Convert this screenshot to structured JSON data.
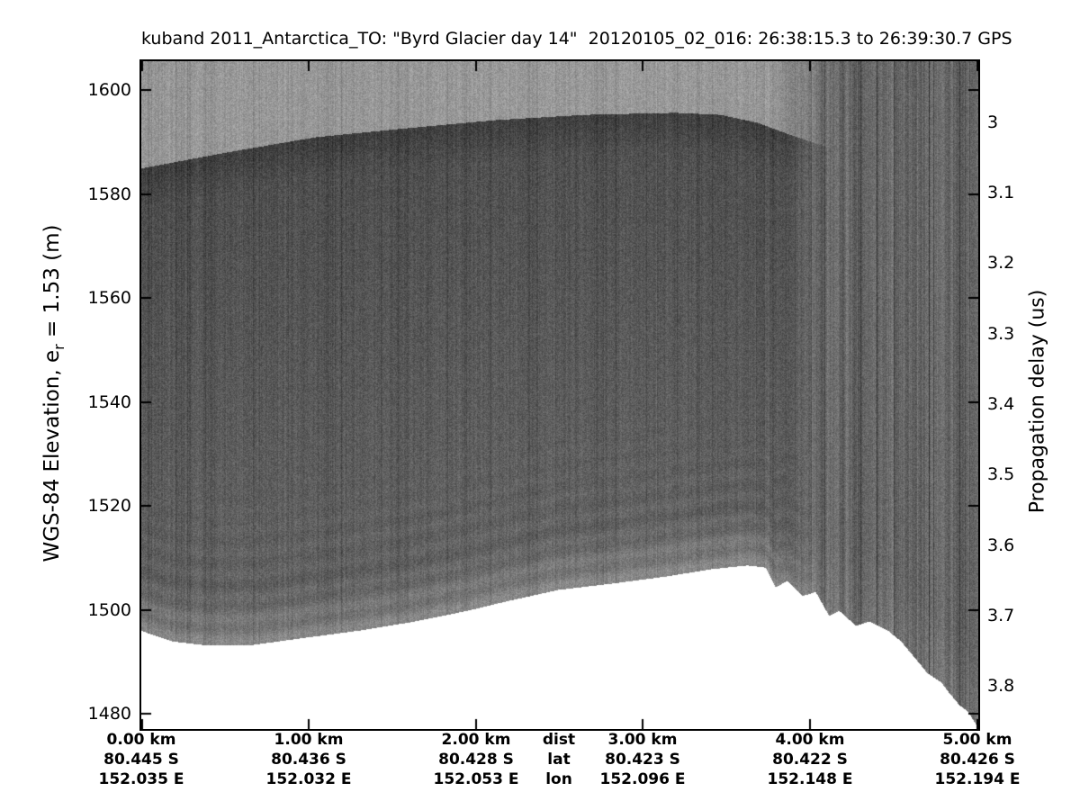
{
  "title": "kuband 2011_Antarctica_TO: \"Byrd Glacier day 14\"  20120105_02_016: 26:38:15.3 to 26:39:30.7 GPS",
  "left_axis": {
    "label_pre": "WGS-84 Elevation, e",
    "label_sub": "r",
    "label_post": " = 1.53 (m)",
    "ticks": [
      "1600",
      "1580",
      "1560",
      "1540",
      "1520",
      "1500",
      "1480"
    ]
  },
  "right_axis": {
    "label": "Propagation delay (us)",
    "ticks": [
      "3",
      "3.1",
      "3.2",
      "3.3",
      "3.4",
      "3.5",
      "3.6",
      "3.7",
      "3.8"
    ]
  },
  "bottom_axis": {
    "row_headers": [
      "dist",
      "lat",
      "lon"
    ],
    "columns": [
      {
        "dist": "0.00 km",
        "lat": "80.445 S",
        "lon": "152.035 E"
      },
      {
        "dist": "1.00 km",
        "lat": "80.436 S",
        "lon": "152.032 E"
      },
      {
        "dist": "2.00 km",
        "lat": "80.428 S",
        "lon": "152.053 E"
      },
      {
        "dist": "3.00 km",
        "lat": "80.423 S",
        "lon": "152.096 E"
      },
      {
        "dist": "4.00 km",
        "lat": "80.422 S",
        "lon": "152.148 E"
      },
      {
        "dist": "5.00 km",
        "lat": "80.426 S",
        "lon": "152.194 E"
      }
    ]
  },
  "chart_data": {
    "type": "heatmap",
    "title": "kuband 2011_Antarctica_TO: \"Byrd Glacier day 14\"  20120105_02_016: 26:38:15.3 to 26:39:30.7 GPS",
    "description": "Grayscale ku-band radar echogram; dark band = glacier surface return near 1590-1596 m, speckled interior with sub-horizontal layering above the bottom-of-data boundary, white below data, strong vertical striations on right fifth where surface return fades.",
    "x_axis": {
      "label": "dist",
      "units": "km",
      "range_km": [
        0,
        5
      ],
      "ticks_km": [
        0,
        1,
        2,
        3,
        4,
        5
      ]
    },
    "y_axis_left": {
      "label": "WGS-84 Elevation, e_r = 1.53 (m)",
      "range_m": [
        1477.2,
        1605.5
      ],
      "ticks_m": [
        1600,
        1580,
        1560,
        1540,
        1520,
        1500,
        1480
      ]
    },
    "y_axis_right": {
      "label": "Propagation delay (us)",
      "ticks_us": [
        3,
        3.1,
        3.2,
        3.3,
        3.4,
        3.5,
        3.6,
        3.7,
        3.8
      ]
    },
    "grid": false,
    "series": [
      {
        "name": "surface-return",
        "x_km": [
          0,
          0.5,
          1.04,
          1.58,
          2.12,
          2.65,
          3.19,
          3.46,
          3.68,
          3.89,
          4.08,
          4.5,
          5
        ],
        "elevation_m": [
          1585,
          1588,
          1591,
          1592.7,
          1594.3,
          1595.3,
          1595.7,
          1595.3,
          1593.8,
          1591.3,
          1589.3,
          1588,
          1586
        ],
        "fade_start_km": 3.78,
        "fade_end_km": 4.13
      },
      {
        "name": "bottom-of-data",
        "x_km": [
          0,
          0.18,
          0.39,
          0.66,
          0.98,
          1.31,
          1.63,
          1.95,
          2.17,
          2.49,
          2.81,
          3.14,
          3.41,
          3.62,
          3.73,
          3.79,
          3.86,
          3.95,
          4.03,
          4.11,
          4.17,
          4.27,
          4.35,
          4.46,
          4.54,
          4.62,
          4.7,
          4.78,
          4.83,
          4.89,
          4.94,
          5
        ],
        "elevation_m": [
          1496,
          1494,
          1493.2,
          1493.3,
          1494.7,
          1496.1,
          1497.8,
          1499.9,
          1501.6,
          1503.9,
          1505.1,
          1506.5,
          1507.9,
          1508.6,
          1508.2,
          1504.4,
          1505.6,
          1502.7,
          1503.5,
          1498.9,
          1499.9,
          1497,
          1497.8,
          1496.1,
          1494,
          1490.9,
          1487.8,
          1486.1,
          1484,
          1481.7,
          1480.5,
          1477.4
        ]
      }
    ],
    "palette": {
      "background": "#ffffff",
      "frame": "#000000",
      "text": "#000000",
      "above_surface_gray": "#989898",
      "surface_return_gray": "#3f3f3f",
      "interior_gray": "#5a5a5a",
      "near_bottom_gray": "#8c8c8c",
      "no_data": "#ffffff"
    }
  }
}
